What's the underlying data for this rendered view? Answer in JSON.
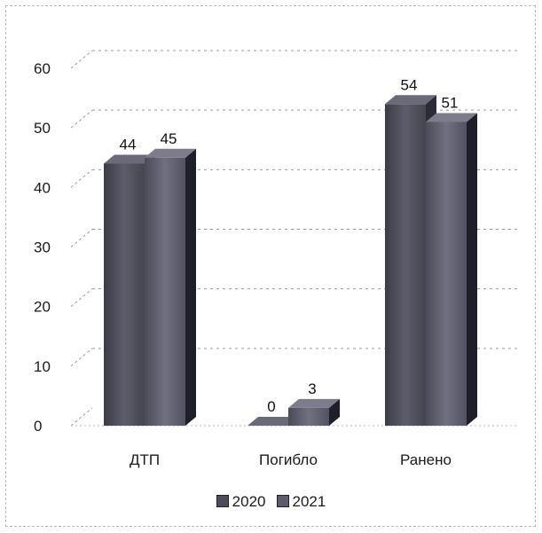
{
  "chart_data": {
    "type": "bar",
    "style": "3d-clustered-column",
    "categories": [
      "ДТП",
      "Погибло",
      "Ранено"
    ],
    "series": [
      {
        "name": "2020",
        "values": [
          44,
          0,
          54
        ],
        "color": "#4d4d5a"
      },
      {
        "name": "2021",
        "values": [
          45,
          3,
          51
        ],
        "color": "#5c5c6a"
      }
    ],
    "data_labels": [
      [
        "44",
        "0",
        "54"
      ],
      [
        "45",
        "3",
        "51"
      ]
    ],
    "ylim": [
      0,
      60
    ],
    "yticks": [
      0,
      10,
      20,
      30,
      40,
      50,
      60
    ],
    "title": "",
    "xlabel": "",
    "ylabel": "",
    "grid": true,
    "legend_position": "bottom"
  }
}
